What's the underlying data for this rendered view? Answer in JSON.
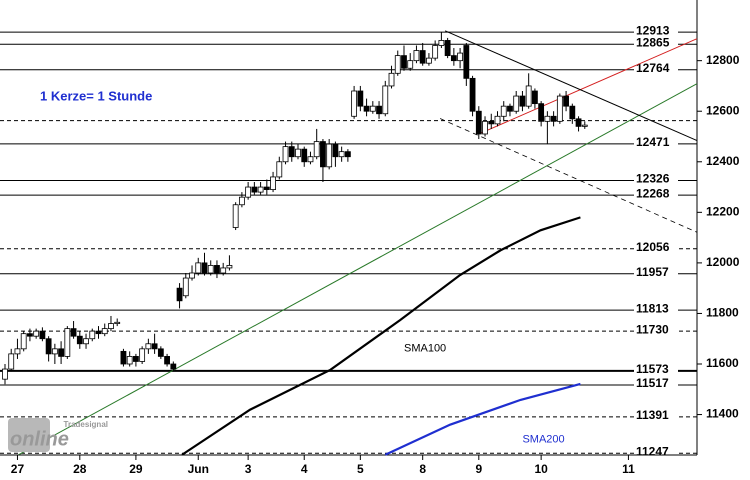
{
  "chart_data": {
    "type": "candlestick",
    "note": "1 Kerze= 1 Stunde",
    "watermark": {
      "small": "Tradesignal",
      "big": "online"
    },
    "xlim": [
      -0.8,
      111
    ],
    "ylim": [
      11240,
      13040
    ],
    "yticks": [
      11400,
      11600,
      11800,
      12000,
      12200,
      12400,
      12600,
      12800
    ],
    "xticks": [
      {
        "value": 2,
        "label": "27"
      },
      {
        "value": 12,
        "label": "28"
      },
      {
        "value": 21,
        "label": "29"
      },
      {
        "value": 31,
        "label": "Jun"
      },
      {
        "value": 39,
        "label": "3"
      },
      {
        "value": 48,
        "label": "4"
      },
      {
        "value": 57,
        "label": "5"
      },
      {
        "value": 67,
        "label": "8"
      },
      {
        "value": 76,
        "label": "9"
      },
      {
        "value": 86,
        "label": "10"
      },
      {
        "value": 100,
        "label": "11"
      }
    ],
    "up_color": "#ffffff",
    "down_color": "#000000",
    "x": [
      0,
      1,
      2,
      3,
      4,
      5,
      6,
      7,
      8,
      9,
      10,
      11,
      12,
      13,
      14,
      15,
      16,
      17,
      18,
      19,
      20,
      21,
      22,
      23,
      24,
      25,
      26,
      27,
      28,
      29,
      30,
      31,
      32,
      33,
      34,
      35,
      36,
      37,
      38,
      39,
      40,
      41,
      42,
      43,
      44,
      45,
      46,
      47,
      48,
      49,
      50,
      51,
      52,
      53,
      54,
      55,
      56,
      57,
      58,
      59,
      60,
      61,
      62,
      63,
      64,
      65,
      66,
      67,
      68,
      69,
      70,
      71,
      72,
      73,
      74,
      75,
      76,
      77,
      78,
      79,
      80,
      81,
      82,
      83,
      84,
      85,
      86,
      87,
      88,
      89,
      90,
      91,
      92,
      93
    ],
    "open": [
      11540,
      11580,
      11640,
      11660,
      11720,
      11710,
      11730,
      11700,
      11640,
      11660,
      11630,
      11740,
      11710,
      11680,
      11700,
      11730,
      11720,
      11740,
      11760,
      11650,
      11600,
      11630,
      11610,
      11660,
      11680,
      11660,
      11630,
      11600,
      11900,
      11870,
      11940,
      11960,
      12000,
      11960,
      11990,
      11960,
      11980,
      12140,
      12230,
      12260,
      12300,
      12280,
      12300,
      12290,
      12340,
      12400,
      12460,
      12420,
      12450,
      12400,
      12420,
      12480,
      12380,
      12470,
      12420,
      12440,
      12580,
      12680,
      12620,
      12600,
      12620,
      12590,
      12700,
      12750,
      12820,
      12770,
      12800,
      12840,
      12790,
      12810,
      12860,
      12880,
      12820,
      12800,
      12860,
      12730,
      12600,
      12510,
      12560,
      12550,
      12580,
      12620,
      12600,
      12660,
      12620,
      12680,
      12630,
      12560,
      12580,
      12560,
      12660,
      12620,
      12570,
      12540
    ],
    "high": [
      11600,
      11660,
      11700,
      11730,
      11740,
      11740,
      11745,
      11710,
      11680,
      11690,
      11750,
      11770,
      11730,
      11720,
      11740,
      11750,
      11760,
      11790,
      11780,
      11660,
      11650,
      11640,
      11670,
      11700,
      11720,
      11670,
      11640,
      11610,
      11920,
      11960,
      11990,
      12020,
      12040,
      12010,
      12010,
      12000,
      12030,
      12240,
      12280,
      12320,
      12320,
      12320,
      12330,
      12360,
      12420,
      12480,
      12480,
      12470,
      12460,
      12440,
      12530,
      12490,
      12490,
      12480,
      12460,
      12450,
      12700,
      12700,
      12650,
      12640,
      12640,
      12720,
      12780,
      12840,
      12860,
      12830,
      12860,
      12870,
      12830,
      12880,
      12913,
      12890,
      12850,
      12850,
      12870,
      12740,
      12620,
      12580,
      12590,
      12600,
      12640,
      12630,
      12680,
      12680,
      12750,
      12690,
      12640,
      12600,
      12600,
      12670,
      12680,
      12630,
      12580,
      12560
    ],
    "low": [
      11520,
      11570,
      11620,
      11650,
      11690,
      11700,
      11690,
      11610,
      11600,
      11600,
      11620,
      11700,
      11660,
      11660,
      11690,
      11700,
      11710,
      11730,
      11750,
      11590,
      11590,
      11590,
      11600,
      11640,
      11640,
      11620,
      11590,
      11570,
      11820,
      11860,
      11930,
      11950,
      11950,
      11950,
      11940,
      11950,
      11970,
      12130,
      12220,
      12250,
      12270,
      12270,
      12270,
      12280,
      12330,
      12390,
      12400,
      12410,
      12380,
      12390,
      12410,
      12320,
      12370,
      12380,
      12400,
      12400,
      12570,
      12600,
      12580,
      12590,
      12570,
      12580,
      12690,
      12740,
      12760,
      12760,
      12790,
      12780,
      12780,
      12800,
      12850,
      12810,
      12780,
      12770,
      12700,
      12580,
      12490,
      12500,
      12530,
      12540,
      12560,
      12580,
      12590,
      12600,
      12610,
      12610,
      12540,
      12470,
      12540,
      12550,
      12600,
      12550,
      12520,
      12530
    ],
    "close": [
      11580,
      11640,
      11660,
      11720,
      11710,
      11730,
      11700,
      11640,
      11660,
      11630,
      11740,
      11710,
      11680,
      11700,
      11730,
      11720,
      11740,
      11760,
      11765,
      11600,
      11630,
      11610,
      11660,
      11680,
      11660,
      11630,
      11600,
      11580,
      11850,
      11940,
      11960,
      12000,
      11960,
      11990,
      11960,
      11980,
      11990,
      12230,
      12260,
      12300,
      12280,
      12300,
      12290,
      12340,
      12400,
      12460,
      12420,
      12450,
      12400,
      12420,
      12480,
      12380,
      12470,
      12420,
      12440,
      12420,
      12680,
      12620,
      12600,
      12620,
      12590,
      12700,
      12750,
      12820,
      12770,
      12800,
      12840,
      12790,
      12810,
      12860,
      12880,
      12820,
      12800,
      12830,
      12730,
      12600,
      12510,
      12560,
      12550,
      12580,
      12620,
      12600,
      12660,
      12620,
      12700,
      12630,
      12560,
      12580,
      12560,
      12660,
      12620,
      12570,
      12540,
      12545
    ],
    "levels": [
      {
        "value": 12913,
        "style": "solid",
        "labeled": true
      },
      {
        "value": 12865,
        "style": "solid",
        "labeled": true
      },
      {
        "value": 12764,
        "style": "solid",
        "labeled": true
      },
      {
        "value": 12563,
        "style": "dashed",
        "labeled": false
      },
      {
        "value": 12471,
        "style": "solid",
        "labeled": true
      },
      {
        "value": 12326,
        "style": "solid",
        "labeled": true
      },
      {
        "value": 12268,
        "style": "solid",
        "labeled": true
      },
      {
        "value": 12056,
        "style": "dashed",
        "labeled": true
      },
      {
        "value": 11957,
        "style": "solid",
        "labeled": true
      },
      {
        "value": 11813,
        "style": "solid",
        "labeled": true
      },
      {
        "value": 11730,
        "style": "dashed",
        "labeled": true
      },
      {
        "value": 11573,
        "style": "thick",
        "labeled": true
      },
      {
        "value": 11517,
        "style": "solid",
        "labeled": true
      },
      {
        "value": 11391,
        "style": "dashed",
        "labeled": true
      },
      {
        "value": 11247,
        "style": "dashed",
        "labeled": true
      }
    ],
    "lines": [
      {
        "name": "SMA100",
        "color": "#000000",
        "width": 2.2,
        "dash": false,
        "x": [
          28.4,
          39.3,
          52.2,
          63.4,
          73,
          79.5,
          85.9,
          92.3
        ],
        "y": [
          11241,
          11419,
          11577,
          11774,
          11952,
          12050,
          12129,
          12180
        ]
      },
      {
        "name": "SMA200",
        "color": "#1f2fd0",
        "width": 2.2,
        "dash": false,
        "x": [
          61,
          71.4,
          82.7,
          92.3
        ],
        "y": [
          11241,
          11360,
          11458,
          11521
        ]
      },
      {
        "color": "#2a7a2a",
        "width": 1,
        "dash": false,
        "x": [
          2.2,
          111
        ],
        "y": [
          11241,
          12709
        ]
      },
      {
        "color": "#d42020",
        "width": 1,
        "dash": false,
        "x": [
          76.2,
          111
        ],
        "y": [
          12512,
          12887
        ]
      },
      {
        "color": "#000000",
        "width": 1,
        "dash": false,
        "x": [
          70.6,
          111
        ],
        "y": [
          12918,
          12484
        ]
      },
      {
        "color": "#000000",
        "width": 0.8,
        "dash": true,
        "x": [
          69.8,
          111
        ],
        "y": [
          12571,
          12121
        ]
      }
    ],
    "line_labels": [
      {
        "line": 0,
        "x": 64,
        "y": 11660
      },
      {
        "line": 1,
        "x": 83,
        "y": 11300
      }
    ]
  }
}
